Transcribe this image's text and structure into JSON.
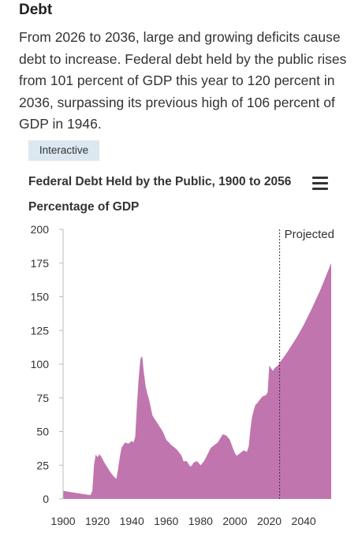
{
  "section": {
    "heading": "Debt",
    "paragraph": "From 2026 to 2036, large and growing deficits cause debt to increase. Federal debt held by the public rises from 101 percent of GDP this year to 120 percent in 2036, surpassing its previous high of 106 percent of GDP in 1946.",
    "badge": "Interactive"
  },
  "colors": {
    "area": "#c175ae",
    "axis": "#bbbbbb",
    "marker": "#333333"
  },
  "icons": {
    "menu": "hamburger-menu-icon"
  },
  "chart_data": {
    "type": "area",
    "title": "Federal Debt Held by the Public, 1900 to 2056",
    "ylabel": "Percentage of GDP",
    "xlabel": "",
    "xlim": [
      1900,
      2056
    ],
    "ylim": [
      0,
      200
    ],
    "xticks": [
      1900,
      1920,
      1940,
      1960,
      1980,
      2000,
      2020,
      2040
    ],
    "yticks": [
      0,
      25,
      50,
      75,
      100,
      125,
      150,
      175,
      200
    ],
    "grid": false,
    "annotation": {
      "label": "Projected",
      "x": 2026
    },
    "series": [
      {
        "x": [
          1900,
          1905,
          1910,
          1915,
          1916,
          1917,
          1918,
          1919,
          1920,
          1921,
          1922,
          1924,
          1926,
          1928,
          1930,
          1931,
          1932,
          1933,
          1934,
          1936,
          1938,
          1940,
          1941,
          1942,
          1943,
          1944,
          1945,
          1946,
          1947,
          1948,
          1949,
          1950,
          1952,
          1955,
          1958,
          1960,
          1963,
          1966,
          1969,
          1970,
          1972,
          1974,
          1975,
          1976,
          1978,
          1980,
          1982,
          1984,
          1986,
          1988,
          1990,
          1992,
          1993,
          1995,
          1997,
          1999,
          2000,
          2001,
          2003,
          2005,
          2007,
          2008,
          2009,
          2010,
          2011,
          2012,
          2013,
          2014,
          2016,
          2018,
          2019,
          2020,
          2021,
          2022,
          2023,
          2024,
          2025,
          2026,
          2030,
          2036,
          2040,
          2045,
          2050,
          2056
        ],
        "values": [
          6,
          5,
          4,
          3,
          3,
          6,
          25,
          33,
          31,
          33,
          32,
          27,
          23,
          19,
          16,
          15,
          22,
          31,
          38,
          42,
          41,
          43,
          42,
          46,
          70,
          90,
          104,
          106,
          94,
          84,
          78,
          74,
          62,
          56,
          50,
          44,
          40,
          37,
          32,
          28,
          28,
          24,
          25,
          27,
          28,
          25,
          28,
          33,
          38,
          40,
          42,
          46,
          48,
          47,
          44,
          37,
          34,
          32,
          34,
          36,
          35,
          39,
          52,
          61,
          66,
          70,
          71,
          73,
          76,
          77,
          79,
          99,
          97,
          95,
          97,
          98,
          99,
          101,
          108,
          120,
          129,
          142,
          156,
          175
        ]
      }
    ]
  }
}
